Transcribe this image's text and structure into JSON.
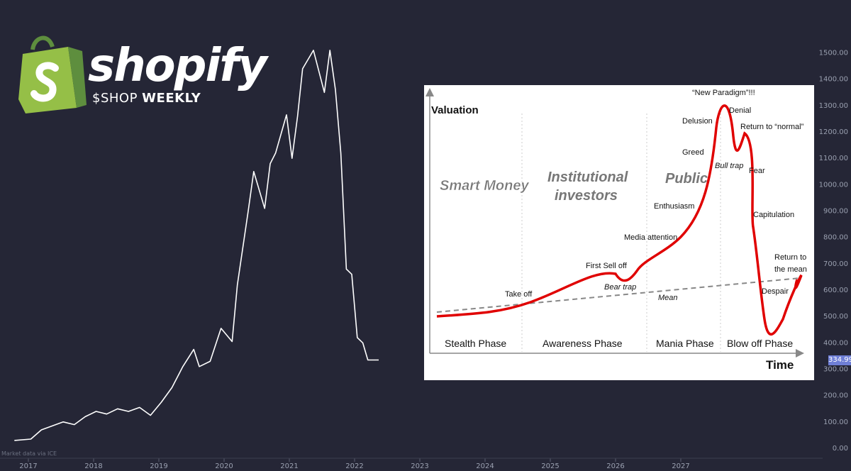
{
  "chart_data": [
    {
      "type": "line",
      "series": [
        {
          "x": [
            "2016-10",
            "2017-01",
            "2017-03",
            "2017-05",
            "2017-07",
            "2017-09",
            "2017-11",
            "2018-01",
            "2018-03",
            "2018-05",
            "2018-07",
            "2018-09",
            "2018-11",
            "2019-01",
            "2019-03",
            "2019-05",
            "2019-07",
            "2019-08",
            "2019-10",
            "2019-12",
            "2020-02",
            "2020-03",
            "2020-05",
            "2020-06",
            "2020-08",
            "2020-09",
            "2020-10",
            "2020-12",
            "2021-01",
            "2021-02",
            "2021-03",
            "2021-05",
            "2021-07",
            "2021-08",
            "2021-09",
            "2021-10",
            "2021-11",
            "2021-12",
            "2022-01",
            "2022-02",
            "2022-03",
            "2022-04",
            "2022-05"
          ],
          "values": [
            30,
            35,
            70,
            85,
            100,
            90,
            120,
            140,
            130,
            150,
            140,
            155,
            125,
            175,
            230,
            310,
            375,
            310,
            330,
            455,
            405,
            620,
            900,
            1050,
            910,
            1080,
            1120,
            1265,
            1100,
            1260,
            1440,
            1510,
            1350,
            1510,
            1360,
            1120,
            680,
            660,
            420,
            400,
            335,
            335,
            334.99
          ]
        }
      ],
      "ylim": [
        0,
        1550
      ],
      "y_ticks": [
        "0.00",
        "100.00",
        "200.00",
        "300.00",
        "400.00",
        "500.00",
        "600.00",
        "700.00",
        "800.00",
        "900.00",
        "1000.00",
        "1100.00",
        "1200.00",
        "1300.00",
        "1400.00",
        "1500.00"
      ],
      "x_ticks": [
        "2017",
        "2018",
        "2019",
        "2020",
        "2021",
        "2022",
        "2023",
        "2024",
        "2025",
        "2026",
        "2027"
      ],
      "last_price": "334.99",
      "footnote": "Market data via ICE",
      "grid": false,
      "line_color": "#ffffff"
    },
    {
      "type": "line",
      "xlabel": "Time",
      "ylabel": "Valuation",
      "phases": [
        "Stealth Phase",
        "Awareness Phase",
        "Mania Phase",
        "Blow off Phase"
      ],
      "participants": [
        "Smart Money",
        "Institutional investors",
        "Public"
      ],
      "annotations": [
        "Take off",
        "First Sell off",
        "Bear trap",
        "Media attention",
        "Enthusiasm",
        "Greed",
        "Delusion",
        "“New Paradigm”!!!",
        "Denial",
        "Bull trap",
        "Return to “normal”",
        "Fear",
        "Capitulation",
        "Despair",
        "Return to the mean",
        "Mean"
      ],
      "series": [
        {
          "name": "Valuation",
          "color": "#e00000"
        },
        {
          "name": "Mean",
          "color": "#888888",
          "dashed": true
        }
      ]
    }
  ],
  "logo": {
    "word": "shopify",
    "ticker": "$SHOP",
    "period": "WEEKLY",
    "colors": {
      "bag_dark": "#5e8e3e",
      "bag_light": "#95bf47"
    }
  }
}
